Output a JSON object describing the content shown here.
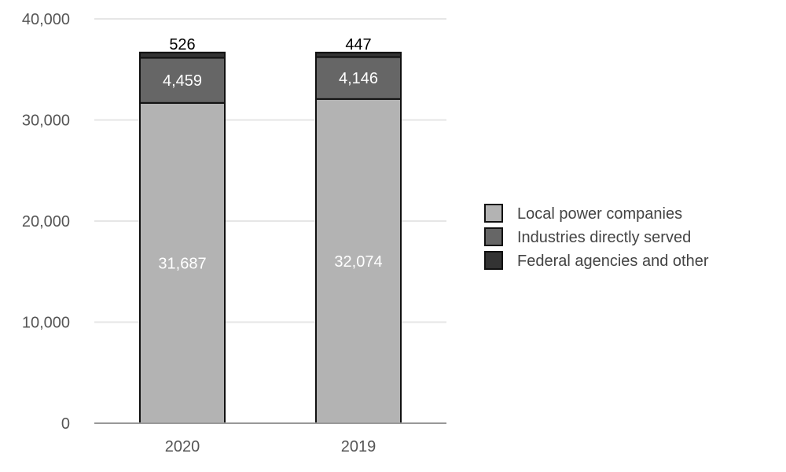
{
  "chart_data": {
    "type": "bar",
    "stacked": true,
    "categories": [
      "2020",
      "2019"
    ],
    "series": [
      {
        "name": "Local power companies",
        "values": [
          31687,
          32074
        ],
        "color": "#b3b3b3",
        "label_color": "#ffffff"
      },
      {
        "name": "Industries directly served",
        "values": [
          4459,
          4146
        ],
        "color": "#666666",
        "label_color": "#ffffff"
      },
      {
        "name": "Federal agencies and other",
        "values": [
          526,
          447
        ],
        "color": "#333333",
        "label_color": "#000000"
      }
    ],
    "ylim": [
      0,
      40000
    ],
    "yticks": [
      0,
      10000,
      20000,
      30000,
      40000
    ],
    "ytick_labels": [
      "0",
      "10,000",
      "20,000",
      "30,000",
      "40,000"
    ],
    "data_labels": [
      [
        "31,687",
        "32,074"
      ],
      [
        "4,459",
        "4,146"
      ],
      [
        "526",
        "447"
      ]
    ],
    "grid": true,
    "legend_position": "right"
  }
}
